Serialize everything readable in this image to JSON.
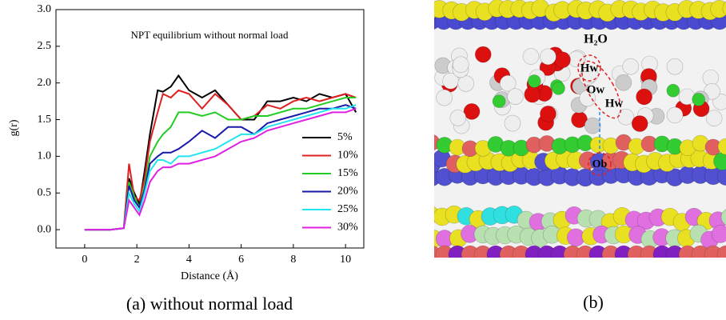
{
  "chart_data": {
    "type": "line",
    "title": "NPT equilibrium without normal load",
    "x_label": "Distance (Å)",
    "y_label": "g(r)",
    "x": [
      0,
      0.5,
      1,
      1.5,
      1.7,
      1.9,
      2.1,
      2.3,
      2.5,
      2.8,
      3.0,
      3.3,
      3.6,
      4.0,
      4.5,
      5.0,
      5.5,
      6.0,
      6.5,
      7.0,
      7.5,
      8.0,
      8.5,
      9.0,
      9.5,
      10.0,
      10.4
    ],
    "series": [
      {
        "name": "5%",
        "color": "#000000",
        "values": [
          0,
          0,
          0,
          0.02,
          0.7,
          0.5,
          0.35,
          0.8,
          1.3,
          1.9,
          1.88,
          1.95,
          2.1,
          1.9,
          1.8,
          1.9,
          1.7,
          1.5,
          1.5,
          1.75,
          1.75,
          1.8,
          1.75,
          1.85,
          1.8,
          1.85,
          1.6
        ]
      },
      {
        "name": "10%",
        "color": "#e02020",
        "values": [
          0,
          0,
          0,
          0.02,
          0.9,
          0.45,
          0.4,
          0.7,
          1.2,
          1.6,
          1.85,
          1.8,
          1.9,
          1.85,
          1.65,
          1.85,
          1.7,
          1.5,
          1.55,
          1.7,
          1.65,
          1.75,
          1.8,
          1.75,
          1.8,
          1.85,
          1.8
        ]
      },
      {
        "name": "15%",
        "color": "#22cc22",
        "values": [
          0,
          0,
          0,
          0.02,
          0.65,
          0.45,
          0.3,
          0.6,
          1.0,
          1.2,
          1.3,
          1.4,
          1.6,
          1.6,
          1.55,
          1.6,
          1.5,
          1.5,
          1.55,
          1.55,
          1.6,
          1.65,
          1.65,
          1.7,
          1.75,
          1.8,
          1.8
        ]
      },
      {
        "name": "20%",
        "color": "#1a1aaa",
        "values": [
          0,
          0,
          0,
          0.02,
          0.6,
          0.4,
          0.3,
          0.55,
          0.9,
          1.0,
          1.05,
          1.05,
          1.1,
          1.2,
          1.35,
          1.25,
          1.4,
          1.4,
          1.3,
          1.45,
          1.5,
          1.55,
          1.6,
          1.65,
          1.65,
          1.7,
          1.65
        ]
      },
      {
        "name": "25%",
        "color": "#22e5f0",
        "values": [
          0,
          0,
          0,
          0.02,
          0.5,
          0.35,
          0.25,
          0.5,
          0.8,
          0.95,
          0.95,
          0.9,
          1.0,
          1.0,
          1.05,
          1.1,
          1.2,
          1.3,
          1.3,
          1.4,
          1.45,
          1.5,
          1.55,
          1.6,
          1.65,
          1.65,
          1.7
        ]
      },
      {
        "name": "30%",
        "color": "#e020e0",
        "values": [
          0,
          0,
          0,
          0.02,
          0.4,
          0.3,
          0.2,
          0.4,
          0.65,
          0.8,
          0.85,
          0.85,
          0.9,
          0.9,
          0.95,
          1.0,
          1.1,
          1.2,
          1.25,
          1.35,
          1.4,
          1.45,
          1.5,
          1.55,
          1.6,
          1.6,
          1.65
        ]
      }
    ],
    "xlim": [
      -1.1,
      10.7
    ],
    "xticks": [
      0,
      2,
      4,
      6,
      8,
      10
    ],
    "ylim": [
      -0.25,
      3.0
    ],
    "yticks": [
      {
        "value": 0,
        "label": "0.0"
      },
      0.5,
      {
        "value": 1,
        "label": "1.0"
      },
      1.5,
      {
        "value": 2,
        "label": "2.0"
      },
      2.5,
      {
        "value": 3,
        "label": "3.0"
      }
    ],
    "legend": "lower right"
  },
  "captions": [
    "(a) without normal load",
    "(b)"
  ],
  "panel_b": {
    "labels": [
      "H₂O",
      "Hw",
      "Ow",
      "Hw",
      "Ob"
    ]
  }
}
